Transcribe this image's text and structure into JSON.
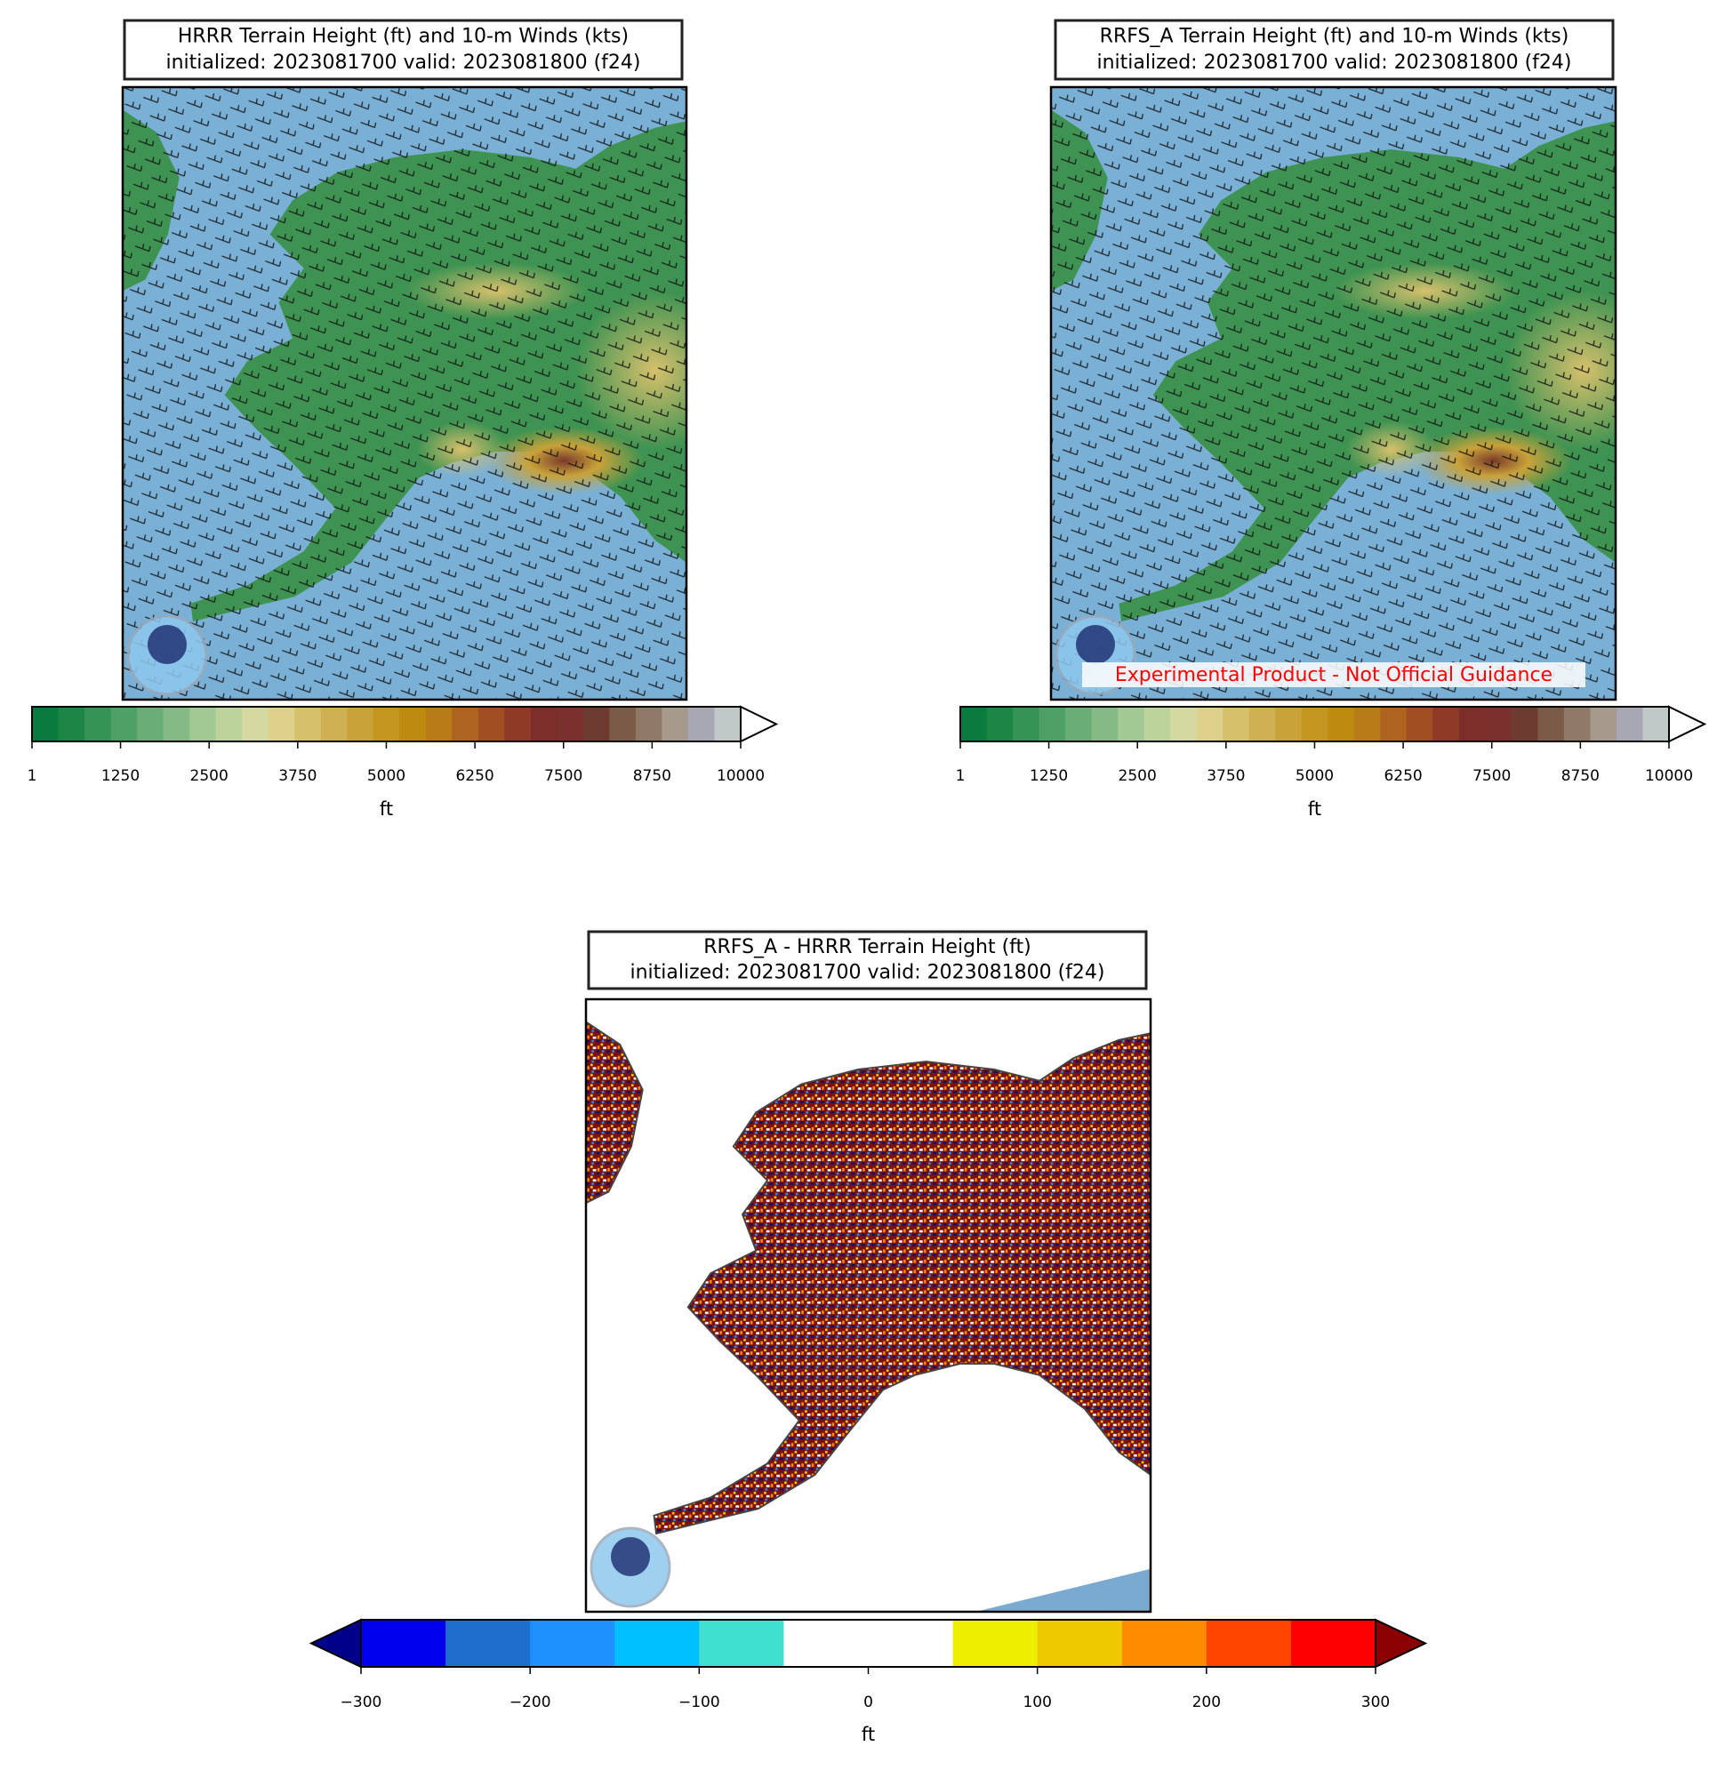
{
  "panels": [
    {
      "title": [
        "HRRR Terrain Height (ft) and 10-m Winds (kts)",
        "initialized: 2023081700 valid: 2023081800 (f24)"
      ],
      "colorbar": {
        "lim": [
          1,
          10000
        ],
        "ticks": [
          1,
          1250,
          2500,
          3750,
          5000,
          6250,
          7500,
          8750,
          10000
        ],
        "label": "ft",
        "extend": "max",
        "colors": [
          "#0b7a3e",
          "#1d8647",
          "#349355",
          "#4fa066",
          "#6aad76",
          "#86ba85",
          "#a2c894",
          "#bcd39c",
          "#d4d9a0",
          "#dcd08a",
          "#d6c06c",
          "#cfb052",
          "#c9a23a",
          "#c49620",
          "#bf8a10",
          "#b97a18",
          "#ae6420",
          "#a04e22",
          "#8e3a26",
          "#7e2e2a",
          "#7a302c",
          "#6e3b30",
          "#7c5a48",
          "#8f7a68",
          "#a59a8c",
          "#a8a8b4",
          "#c0c8c8"
        ],
        "over": "#ffffff"
      }
    },
    {
      "title": [
        "RRFS_A Terrain Height (ft) and 10-m Winds (kts)",
        "initialized: 2023081700 valid: 2023081800 (f24)"
      ],
      "annotation": "Experimental Product - Not Official Guidance",
      "colorbar": {
        "lim": [
          1,
          10000
        ],
        "ticks": [
          1,
          1250,
          2500,
          3750,
          5000,
          6250,
          7500,
          8750,
          10000
        ],
        "label": "ft",
        "extend": "max",
        "colors": [
          "#0b7a3e",
          "#1d8647",
          "#349355",
          "#4fa066",
          "#6aad76",
          "#86ba85",
          "#a2c894",
          "#bcd39c",
          "#d4d9a0",
          "#dcd08a",
          "#d6c06c",
          "#cfb052",
          "#c9a23a",
          "#c49620",
          "#bf8a10",
          "#b97a18",
          "#ae6420",
          "#a04e22",
          "#8e3a26",
          "#7e2e2a",
          "#7a302c",
          "#6e3b30",
          "#7c5a48",
          "#8f7a68",
          "#a59a8c",
          "#a8a8b4",
          "#c0c8c8"
        ],
        "over": "#ffffff"
      }
    },
    {
      "title": [
        "RRFS_A - HRRR Terrain Height (ft)",
        "initialized: 2023081700 valid: 2023081800 (f24)"
      ],
      "colorbar": {
        "lim": [
          -300,
          300
        ],
        "ticks": [
          {
            "value": -300,
            "label": "−300"
          },
          {
            "value": -200,
            "label": "−200"
          },
          {
            "value": -100,
            "label": "−100"
          },
          0,
          100,
          200,
          300
        ],
        "label": "ft",
        "extend": "both",
        "colors": [
          "#0000ee",
          "#1e6ecd",
          "#1e90ff",
          "#00bfff",
          "#40e0d0",
          "#ffffff",
          "#ffffff",
          "#eeee00",
          "#eec900",
          "#ff8c00",
          "#ff4500",
          "#ff0000"
        ],
        "under": "#00008b",
        "over": "#8b0000"
      }
    }
  ]
}
